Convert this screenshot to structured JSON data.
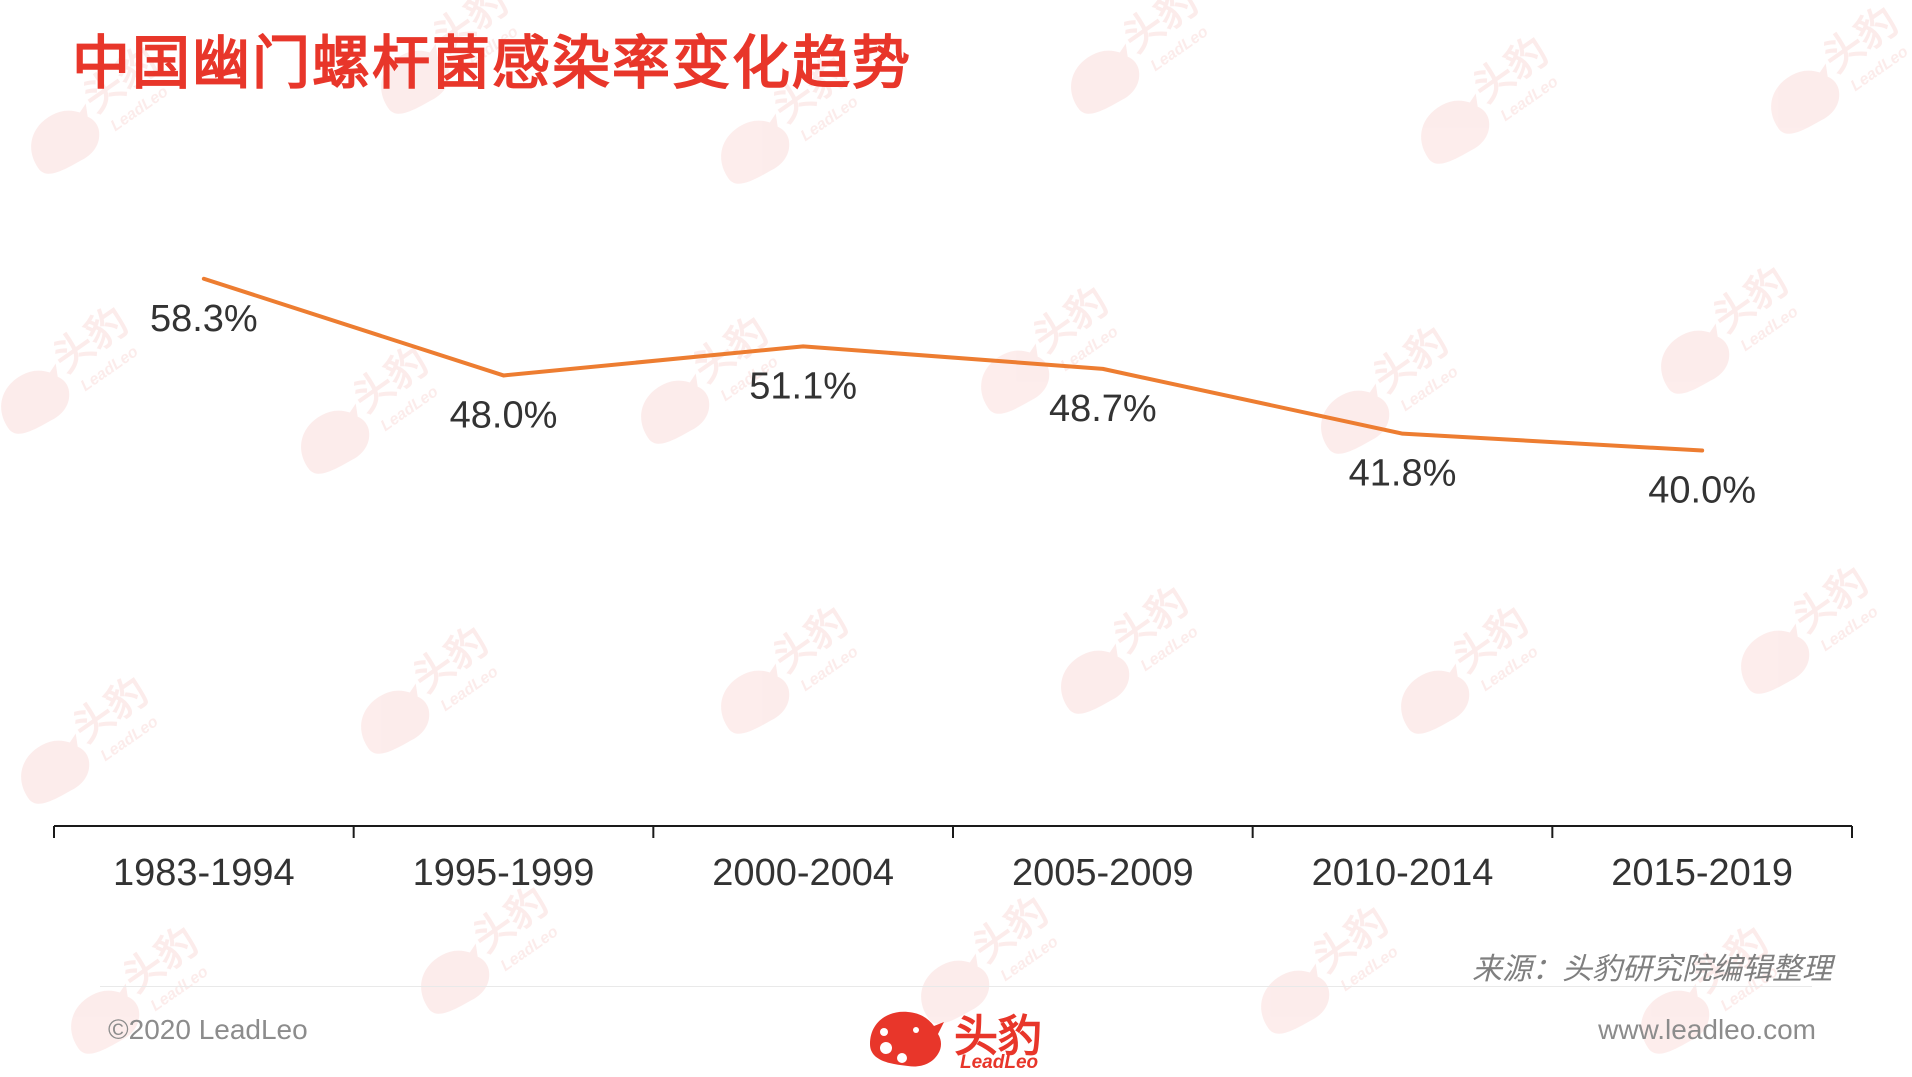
{
  "title": "中国幽门螺杆菌感染率变化趋势",
  "chart_data": {
    "type": "line",
    "categories": [
      "1983-1994",
      "1995-1999",
      "2000-2004",
      "2005-2009",
      "2010-2014",
      "2015-2019"
    ],
    "series": [
      {
        "values": [
          58.3,
          48.0,
          51.1,
          48.7,
          41.8,
          40.0
        ],
        "value_labels": [
          "58.3%",
          "48.0%",
          "51.1%",
          "48.7%",
          "41.8%",
          "40.0%"
        ]
      }
    ],
    "ylim": [
      0,
      88
    ],
    "grid": false,
    "legend": "none",
    "line_color": "#ed7d31",
    "axis_color": "#1a1a1a",
    "label_color": "#333333"
  },
  "source_note": "来源：头豹研究院编辑整理",
  "footer": {
    "copyright": "©2020 LeadLeo",
    "website": "www.leadleo.com",
    "logo_cn": "头豹",
    "logo_en": "LeadLeo"
  },
  "watermark": {
    "text_cn": "头豹",
    "text_en": "LeadLeo",
    "color": "#e8362a"
  },
  "brand_color": "#e8362a"
}
